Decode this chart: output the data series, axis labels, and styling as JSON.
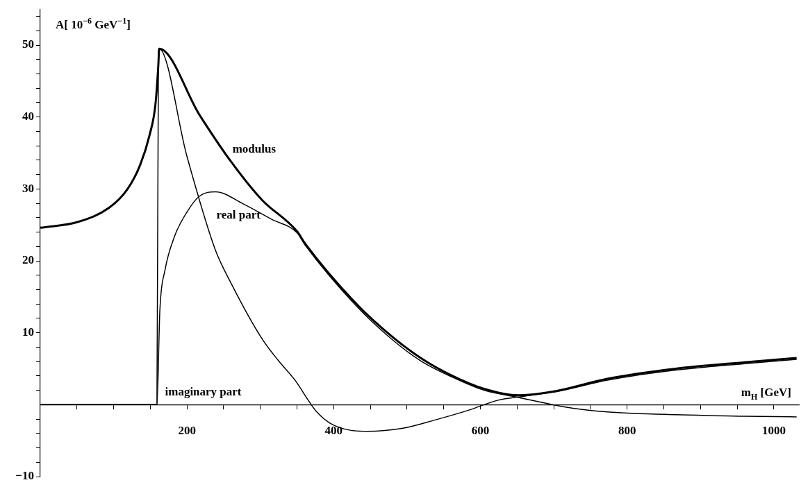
{
  "chart_data": {
    "type": "line",
    "xlabel": "m$_{H}$ [GeV]",
    "ylabel": "A[ 10$^{−6}$ GeV$^{−1}$]",
    "xlim": [
      0,
      1035
    ],
    "ylim": [
      -10,
      55
    ],
    "xticks": [
      {
        "value": 50,
        "label": null
      },
      {
        "value": 100,
        "label": null
      },
      {
        "value": 150,
        "label": null
      },
      200,
      {
        "value": 250,
        "label": null
      },
      {
        "value": 300,
        "label": null
      },
      {
        "value": 350,
        "label": null
      },
      400,
      {
        "value": 450,
        "label": null
      },
      {
        "value": 500,
        "label": null
      },
      {
        "value": 550,
        "label": null
      },
      600,
      {
        "value": 650,
        "label": null
      },
      {
        "value": 700,
        "label": null
      },
      {
        "value": 750,
        "label": null
      },
      800,
      {
        "value": 850,
        "label": null
      },
      {
        "value": 900,
        "label": null
      },
      {
        "value": 950,
        "label": null
      },
      1000
    ],
    "yticks": [
      {
        "value": -10,
        "label": "−10"
      },
      {
        "value": -8,
        "label": null
      },
      {
        "value": -6,
        "label": null
      },
      {
        "value": -4,
        "label": null
      },
      {
        "value": -2,
        "label": null
      },
      {
        "value": 2,
        "label": null
      },
      {
        "value": 4,
        "label": null
      },
      {
        "value": 6,
        "label": null
      },
      {
        "value": 8,
        "label": null
      },
      10,
      {
        "value": 12,
        "label": null
      },
      {
        "value": 14,
        "label": null
      },
      {
        "value": 16,
        "label": null
      },
      {
        "value": 18,
        "label": null
      },
      20,
      {
        "value": 22,
        "label": null
      },
      {
        "value": 24,
        "label": null
      },
      {
        "value": 26,
        "label": null
      },
      {
        "value": 28,
        "label": null
      },
      30,
      {
        "value": 32,
        "label": null
      },
      {
        "value": 34,
        "label": null
      },
      {
        "value": 36,
        "label": null
      },
      {
        "value": 38,
        "label": null
      },
      40,
      {
        "value": 42,
        "label": null
      },
      {
        "value": 44,
        "label": null
      },
      {
        "value": 46,
        "label": null
      },
      {
        "value": 48,
        "label": null
      },
      50,
      {
        "value": 52,
        "label": null
      },
      {
        "value": 54,
        "label": null
      }
    ],
    "grid": false,
    "legend": false,
    "marker": "none",
    "line_style": "solid",
    "series": [
      {
        "name": "modulus",
        "color": "#000000",
        "x": [
          0,
          51,
          94,
          119,
          136,
          149,
          157,
          161,
          162,
          217,
          260,
          302,
          350,
          361,
          432,
          478,
          520,
          560,
          605,
          652,
          703,
          773,
          866,
          960,
          1031
        ],
        "values": [
          24.6,
          25.4,
          27.4,
          30.0,
          33.3,
          37.5,
          41.8,
          47.4,
          49.5,
          40.3,
          33.8,
          28.5,
          24.1,
          22.4,
          13.9,
          9.6,
          6.4,
          4.1,
          2.2,
          1.3,
          1.9,
          3.6,
          5.0,
          5.9,
          6.5
        ]
      },
      {
        "name": "real part",
        "color": "#000000",
        "x": [
          0,
          159,
          163,
          170,
          183,
          200,
          217,
          239,
          277,
          315,
          350,
          361,
          432,
          478,
          520,
          560,
          605,
          652,
          698,
          726,
          773,
          866,
          960,
          1031
        ],
        "values": [
          0,
          0,
          13.1,
          18.7,
          23.4,
          26.8,
          29.0,
          29.6,
          27.9,
          25.8,
          23.9,
          22.2,
          13.6,
          9.2,
          6.0,
          3.9,
          2.0,
          1.0,
          0,
          -0.5,
          -1.0,
          -1.4,
          -1.6,
          -1.7
        ]
      },
      {
        "name": "imaginary part",
        "color": "#000000",
        "x": [
          0,
          159,
          161,
          162,
          200,
          238,
          260,
          302,
          324,
          348,
          366,
          376,
          399,
          446,
          493,
          539,
          586,
          623,
          661,
          703,
          773,
          866,
          960,
          1031
        ],
        "values": [
          0,
          0,
          47.4,
          49.5,
          34.5,
          21.7,
          16.9,
          9.2,
          6.2,
          3.3,
          0.5,
          -0.9,
          -2.8,
          -3.7,
          -3.3,
          -2.1,
          -0.7,
          0.6,
          1.2,
          1.8,
          3.4,
          4.8,
          5.7,
          6.3
        ]
      }
    ]
  }
}
